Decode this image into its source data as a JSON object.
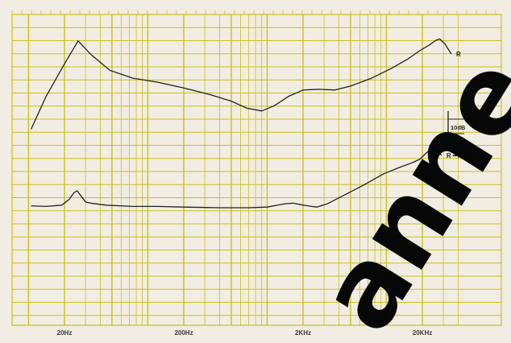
{
  "chart_data": {
    "type": "line",
    "x_scale": "log",
    "xlim": [
      10,
      40000
    ],
    "grid": true,
    "colors": {
      "paper": "#f1ede3",
      "grid": "#c9c020",
      "curve": "#222222",
      "watermark": "#000000"
    },
    "x_tick_labels": [
      {
        "x": 20,
        "label": "20Hz"
      },
      {
        "x": 200,
        "label": "200Hz"
      },
      {
        "x": 2000,
        "label": "2KHz"
      },
      {
        "x": 20000,
        "label": "20KHz"
      }
    ],
    "scale_marker": {
      "label": "10dB",
      "step_db": 10
    },
    "series": [
      {
        "name": "R",
        "label": "R",
        "points": [
          [
            10.5,
            12
          ],
          [
            14,
            17
          ],
          [
            20,
            22
          ],
          [
            26,
            25.5
          ],
          [
            33,
            23.5
          ],
          [
            48,
            21
          ],
          [
            75,
            19.8
          ],
          [
            120,
            19.2
          ],
          [
            200,
            18.3
          ],
          [
            330,
            17.3
          ],
          [
            500,
            16.3
          ],
          [
            680,
            15.2
          ],
          [
            900,
            14.8
          ],
          [
            1150,
            15.6
          ],
          [
            1500,
            17
          ],
          [
            2000,
            18
          ],
          [
            2700,
            18.1
          ],
          [
            3700,
            18
          ],
          [
            5000,
            18.6
          ],
          [
            7500,
            19.8
          ],
          [
            11000,
            21.3
          ],
          [
            15000,
            22.7
          ],
          [
            19000,
            24
          ],
          [
            23000,
            24.9
          ],
          [
            26000,
            25.6
          ],
          [
            28000,
            25.8
          ],
          [
            31000,
            25
          ],
          [
            35000,
            23.5
          ]
        ]
      },
      {
        "name": "R→L",
        "label": "R ━► L",
        "points": [
          [
            10.5,
            0.3
          ],
          [
            14,
            0.2
          ],
          [
            19,
            0.4
          ],
          [
            22,
            1.3
          ],
          [
            24,
            2.3
          ],
          [
            25.5,
            2.6
          ],
          [
            27,
            2
          ],
          [
            30,
            0.9
          ],
          [
            33,
            0.7
          ],
          [
            45,
            0.4
          ],
          [
            75,
            0.2
          ],
          [
            120,
            0.2
          ],
          [
            200,
            0.1
          ],
          [
            400,
            0
          ],
          [
            700,
            0
          ],
          [
            1000,
            0.1
          ],
          [
            1400,
            0.6
          ],
          [
            1650,
            0.7
          ],
          [
            2000,
            0.4
          ],
          [
            2600,
            0.1
          ],
          [
            3200,
            0.6
          ],
          [
            4500,
            2
          ],
          [
            6500,
            3.5
          ],
          [
            9500,
            5.2
          ],
          [
            13000,
            6.2
          ],
          [
            16000,
            6.8
          ],
          [
            19000,
            7.4
          ],
          [
            22000,
            8.5
          ],
          [
            24000,
            9.1
          ],
          [
            26000,
            8.9
          ],
          [
            29000,
            8
          ]
        ]
      }
    ]
  },
  "watermark": {
    "text": "anne"
  }
}
